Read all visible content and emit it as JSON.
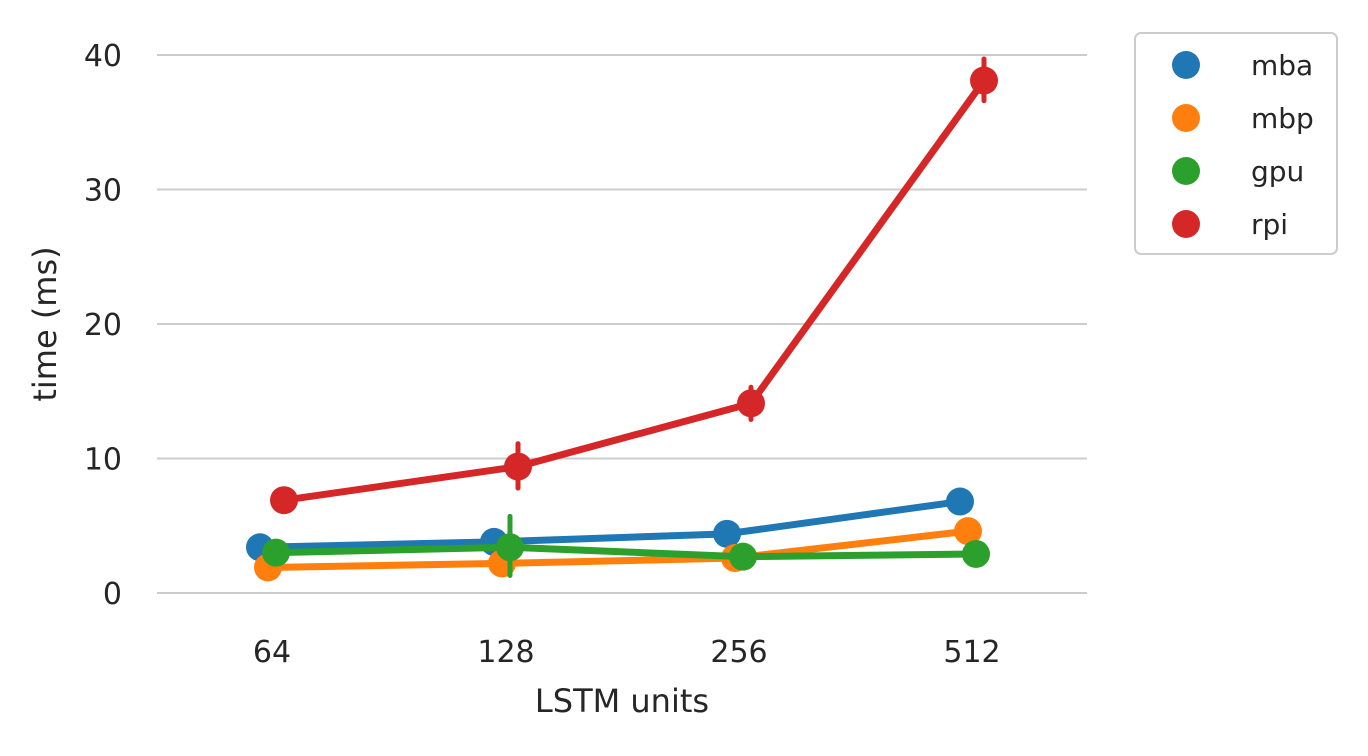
{
  "chart_data": {
    "type": "line",
    "title": "",
    "xlabel": "LSTM units",
    "ylabel": "time (ms)",
    "categories": [
      "64",
      "128",
      "256",
      "512"
    ],
    "ylim": [
      -1.8,
      42
    ],
    "yticks": [
      0,
      10,
      20,
      30,
      40
    ],
    "grid": "horizontal",
    "legend_position": "outside-top-right",
    "series": [
      {
        "name": "mba",
        "color": "#1f77b4",
        "values": [
          3.4,
          3.8,
          4.4,
          6.8
        ],
        "err_low": [
          3.2,
          3.6,
          4.2,
          6.6
        ],
        "err_high": [
          3.6,
          4.0,
          4.6,
          7.0
        ]
      },
      {
        "name": "mbp",
        "color": "#ff7f0e",
        "values": [
          1.9,
          2.2,
          2.6,
          4.6
        ],
        "err_low": [
          1.7,
          2.0,
          2.4,
          4.4
        ],
        "err_high": [
          2.1,
          2.4,
          2.8,
          4.8
        ]
      },
      {
        "name": "gpu",
        "color": "#2ca02c",
        "values": [
          3.0,
          3.4,
          2.7,
          2.9
        ],
        "err_low": [
          2.6,
          1.3,
          2.5,
          2.2
        ],
        "err_high": [
          3.5,
          5.7,
          2.9,
          3.2
        ]
      },
      {
        "name": "rpi",
        "color": "#d62728",
        "values": [
          6.9,
          9.4,
          14.1,
          38.1
        ],
        "err_low": [
          6.7,
          7.8,
          12.9,
          36.6
        ],
        "err_high": [
          7.1,
          11.1,
          15.3,
          39.7
        ]
      }
    ]
  }
}
